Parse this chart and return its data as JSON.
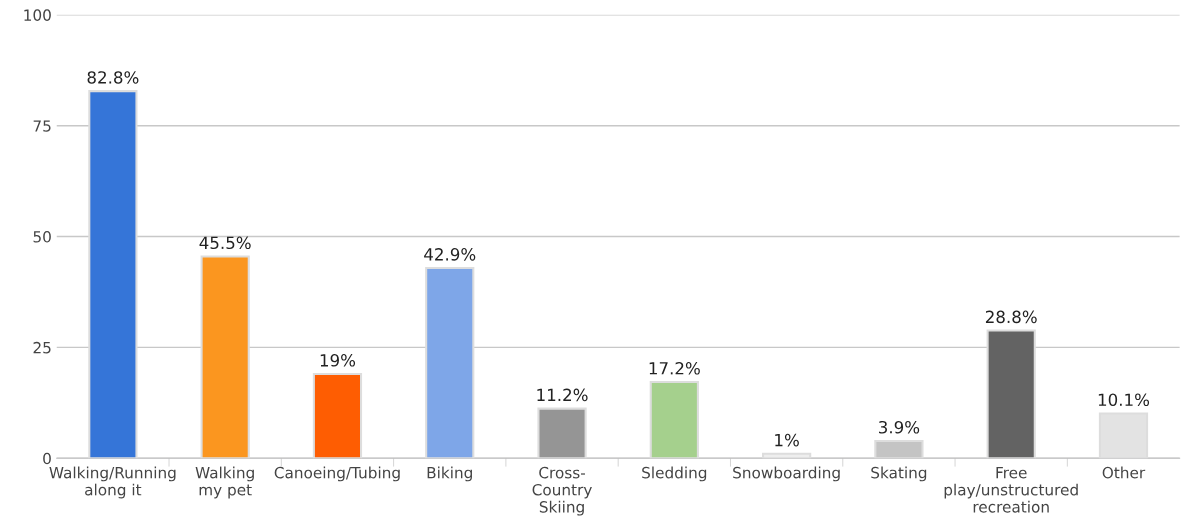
{
  "chart_data": {
    "type": "bar",
    "categories": [
      "Walking/Running\nalong it",
      "Walking\nmy pet",
      "Canoeing/Tubing",
      "Biking",
      "Cross-\nCountry\nSkiing",
      "Sledding",
      "Snowboarding",
      "Skating",
      "Free\nplay/unstructured\nrecreation",
      "Other"
    ],
    "values": [
      82.8,
      45.5,
      19,
      42.9,
      11.2,
      17.2,
      1,
      3.9,
      28.8,
      10.1
    ],
    "colors": [
      "#3575d8",
      "#fb961f",
      "#fe5d02",
      "#7ea6e8",
      "#959595",
      "#a5d08d",
      "#eeeeee",
      "#c4c4c4",
      "#636363",
      "#e3e3e3"
    ],
    "value_labels": [
      "82.8%",
      "45.5%",
      "19%",
      "42.9%",
      "11.2%",
      "17.2%",
      "1%",
      "3.9%",
      "28.8%",
      "10.1%"
    ],
    "ylim": [
      0,
      100
    ],
    "yticks": [
      0,
      25,
      50,
      75,
      100
    ],
    "grid": "y",
    "legend": false
  }
}
